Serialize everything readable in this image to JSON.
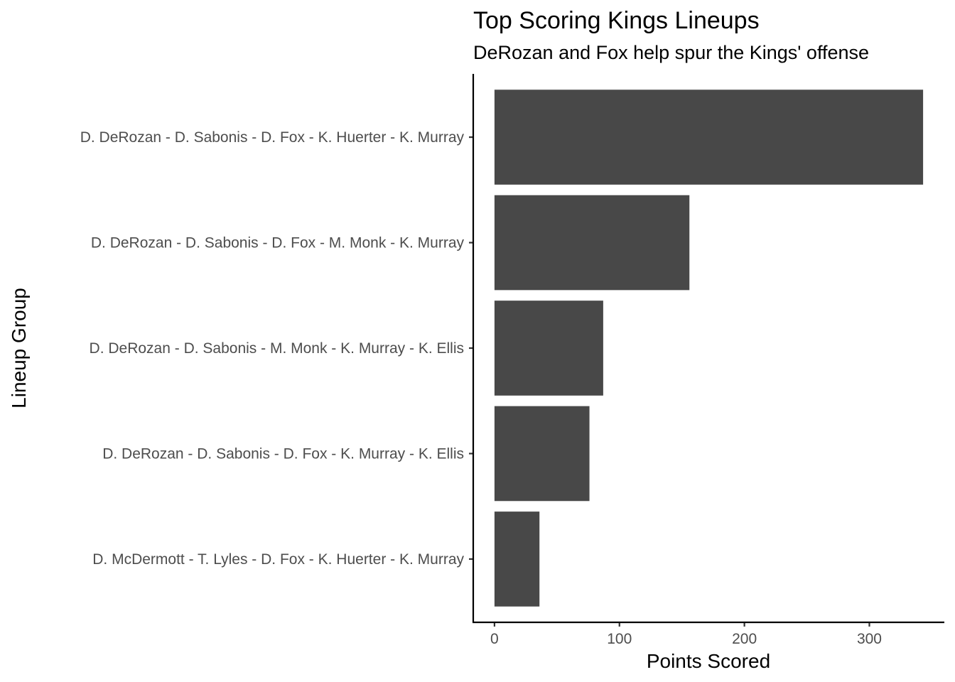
{
  "chart_data": {
    "type": "bar",
    "orientation": "horizontal",
    "title": "Top Scoring Kings Lineups",
    "subtitle": "DeRozan and Fox help spur the Kings' offense",
    "xlabel": "Points Scored",
    "ylabel": "Lineup Group",
    "categories": [
      "D. DeRozan - D. Sabonis - D. Fox - K. Huerter - K. Murray",
      "D. DeRozan - D. Sabonis - D. Fox - M. Monk - K. Murray",
      "D. DeRozan - D. Sabonis - M. Monk - K. Murray - K. Ellis",
      "D. DeRozan - D. Sabonis - D. Fox - K. Murray - K. Ellis",
      "D. McDermott - T. Lyles - D. Fox - K. Huerter - K. Murray"
    ],
    "values": [
      343,
      156,
      87,
      76,
      36
    ],
    "xlim": [
      -17,
      360
    ],
    "xticks": [
      0,
      100,
      200,
      300
    ],
    "bar_color": "#484848",
    "grid": false,
    "legend": "none"
  }
}
